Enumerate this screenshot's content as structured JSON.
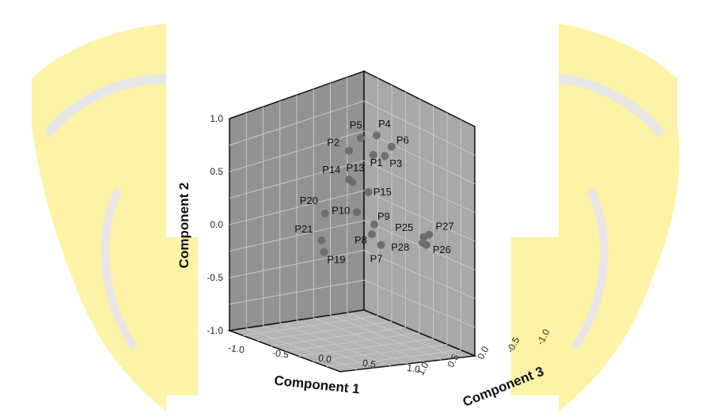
{
  "chart_data": {
    "type": "scatter",
    "subtype": "3d-scatter",
    "xlabel": "Component 1",
    "ylabel": "Component 2",
    "zlabel": "Component 3",
    "x_ticks": [
      "-1.0",
      "-0.5",
      "0.0",
      "0.5",
      "1.0"
    ],
    "y_ticks": [
      "1.0",
      "0.5",
      "0.0",
      "-0.5",
      "-1.0"
    ],
    "z_ticks": [
      "1.0",
      "0.5",
      "0.0",
      "-0.5",
      "-1.0"
    ],
    "xlim": [
      -1.0,
      1.0
    ],
    "ylim": [
      -1.0,
      1.0
    ],
    "zlim": [
      -1.0,
      1.0
    ],
    "grid": true,
    "watermark": "university seal (yellow)",
    "colors": {
      "point": "#6e6e6e",
      "wall_back": "#929292",
      "wall_side": "#a8a8a8",
      "floor": "#b4b4b4",
      "watermark": "#fdf3a3"
    },
    "points": [
      {
        "label": "P1",
        "x": 0.45,
        "y": 0.72,
        "z": 0.05
      },
      {
        "label": "P2",
        "x": 0.2,
        "y": 0.75,
        "z": 0.2
      },
      {
        "label": "P3",
        "x": 0.55,
        "y": 0.72,
        "z": -0.05
      },
      {
        "label": "P4",
        "x": 0.5,
        "y": 0.9,
        "z": 0.05
      },
      {
        "label": "P5",
        "x": 0.3,
        "y": 0.88,
        "z": 0.1
      },
      {
        "label": "P6",
        "x": 0.65,
        "y": 0.8,
        "z": -0.05
      },
      {
        "label": "P7",
        "x": 0.6,
        "y": -0.15,
        "z": 0.1
      },
      {
        "label": "P8",
        "x": 0.5,
        "y": -0.05,
        "z": 0.15
      },
      {
        "label": "P9",
        "x": 0.5,
        "y": 0.05,
        "z": 0.1
      },
      {
        "label": "P10",
        "x": 0.35,
        "y": 0.15,
        "z": 0.25
      },
      {
        "label": "P13",
        "x": 0.25,
        "y": 0.45,
        "z": 0.2
      },
      {
        "label": "P14",
        "x": 0.2,
        "y": 0.48,
        "z": 0.2
      },
      {
        "label": "P15",
        "x": 0.45,
        "y": 0.35,
        "z": 0.15
      },
      {
        "label": "P19",
        "x": -0.1,
        "y": -0.2,
        "z": 0.3
      },
      {
        "label": "P20",
        "x": -0.05,
        "y": 0.15,
        "z": 0.35
      },
      {
        "label": "P21",
        "x": -0.1,
        "y": -0.1,
        "z": 0.35
      },
      {
        "label": "P25",
        "x": 0.7,
        "y": 0.05,
        "z": -0.65
      },
      {
        "label": "P26",
        "x": 0.72,
        "y": -0.02,
        "z": -0.68
      },
      {
        "label": "P27",
        "x": 0.75,
        "y": 0.08,
        "z": -0.7
      },
      {
        "label": "P28",
        "x": 0.68,
        "y": 0.0,
        "z": -0.66
      }
    ]
  }
}
